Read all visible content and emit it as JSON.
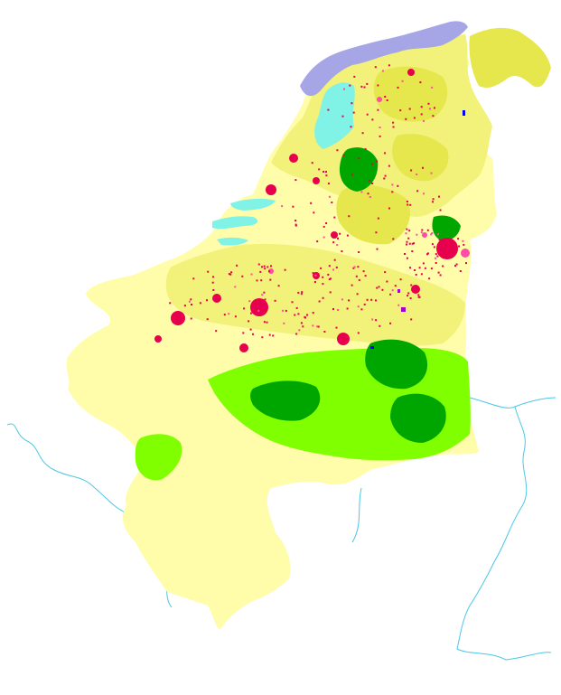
{
  "colors": {
    "background": "#ffffff",
    "arable_pale": "#fffcaa",
    "agriculture_yellow": "#f2f27a",
    "pasture_olive": "#e6e64d",
    "urban": "#e6004d",
    "urban_pink": "#ff4da6",
    "forest_dark": "#00a600",
    "forest_light": "#80ff00",
    "intertidal": "#a6a6e6",
    "water": "#80f2e6",
    "river": "#4cc7e6",
    "industrial_purple": "#a600cc",
    "blue_spots": "#0000ff"
  },
  "legend": []
}
